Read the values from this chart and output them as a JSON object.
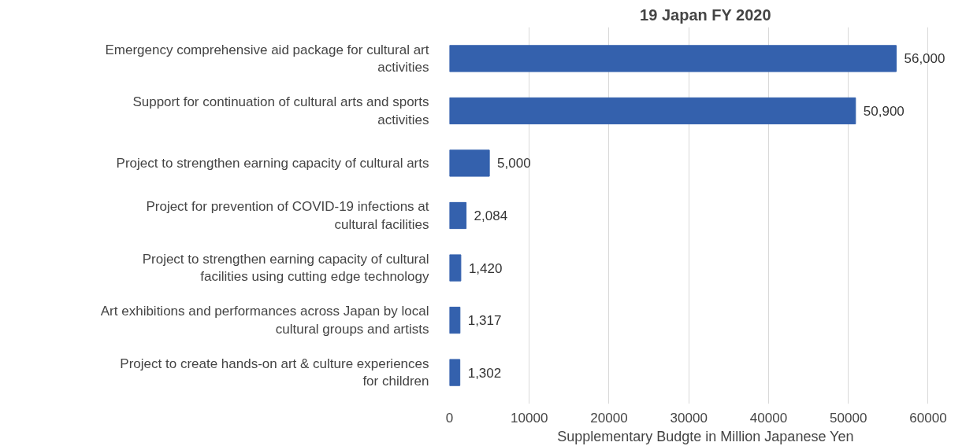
{
  "chart_data": {
    "type": "bar",
    "orientation": "horizontal",
    "title": "19 Japan FY 2020",
    "xlabel": "Supplementary Budgte in Million Japanese Yen",
    "categories": [
      "Emergency comprehensive aid package for cultural art activities",
      "Support for continuation of cultural arts and sports activities",
      "Project to strengthen earning capacity of cultural arts",
      "Project for prevention of COVID-19 infections at cultural facilities",
      "Project to strengthen earning capacity of cultural facilities using cutting edge technology",
      "Art exhibitions and performances across Japan by local cultural groups and artists",
      "Project to create hands-on art & culture experiences for children"
    ],
    "values": [
      56000,
      50900,
      5000,
      2084,
      1420,
      1317,
      1302
    ],
    "value_labels": [
      "56,000",
      "50,900",
      "5,000",
      "2,084",
      "1,420",
      "1,317",
      "1,302"
    ],
    "color": "#3461ad",
    "xlim": [
      0,
      60000
    ],
    "xticks": [
      0,
      10000,
      20000,
      30000,
      40000,
      50000,
      60000
    ],
    "grid": "x"
  }
}
